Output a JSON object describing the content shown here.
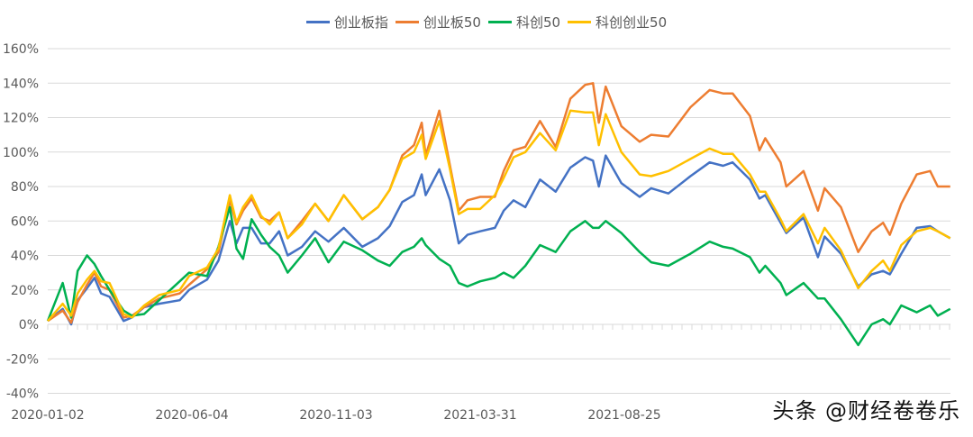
{
  "chart_data": {
    "type": "line",
    "title": "",
    "xlabel": "",
    "ylabel": "",
    "ylim": [
      -40,
      160
    ],
    "y_ticks": [
      -40,
      -20,
      0,
      20,
      40,
      60,
      80,
      100,
      120,
      140,
      160
    ],
    "y_tick_labels": [
      "-40%",
      "-20%",
      "0%",
      "20%",
      "40%",
      "60%",
      "80%",
      "100%",
      "120%",
      "140%",
      "160%"
    ],
    "x_tick_labels": [
      "2020-01-02",
      "2020-06-04",
      "2020-11-03",
      "2021-03-31",
      "2021-08-25"
    ],
    "grid": true,
    "legend_position": "top",
    "x": [
      "2020-01-02",
      "2020-01-18",
      "2020-01-27",
      "2020-02-03",
      "2020-02-13",
      "2020-02-21",
      "2020-02-28",
      "2020-03-08",
      "2020-03-23",
      "2020-04-01",
      "2020-04-14",
      "2020-04-30",
      "2020-05-22",
      "2020-06-01",
      "2020-06-20",
      "2020-07-02",
      "2020-07-14",
      "2020-07-21",
      "2020-07-28",
      "2020-08-06",
      "2020-08-16",
      "2020-08-25",
      "2020-09-04",
      "2020-09-13",
      "2020-09-28",
      "2020-10-12",
      "2020-10-26",
      "2020-11-11",
      "2020-11-30",
      "2020-12-16",
      "2020-12-28",
      "2021-01-10",
      "2021-01-22",
      "2021-01-30",
      "2021-02-03",
      "2021-02-17",
      "2021-02-28",
      "2021-03-09",
      "2021-03-18",
      "2021-03-31",
      "2021-04-15",
      "2021-04-24",
      "2021-05-04",
      "2021-05-16",
      "2021-05-31",
      "2021-06-16",
      "2021-07-01",
      "2021-07-16",
      "2021-07-24",
      "2021-07-30",
      "2021-08-06",
      "2021-08-22",
      "2021-09-10",
      "2021-09-22",
      "2021-10-10",
      "2021-11-02",
      "2021-11-22",
      "2021-12-06",
      "2021-12-16",
      "2022-01-03",
      "2022-01-13",
      "2022-01-19",
      "2022-02-04",
      "2022-02-10",
      "2022-02-28",
      "2022-03-15",
      "2022-03-22",
      "2022-04-08",
      "2022-04-26",
      "2022-05-10",
      "2022-05-22",
      "2022-05-29",
      "2022-06-10",
      "2022-06-26",
      "2022-07-10",
      "2022-07-18",
      "2022-07-31"
    ],
    "series": [
      {
        "name": "创业板指",
        "color": "#4472C4",
        "values": [
          2,
          9,
          0,
          14,
          21,
          27,
          18,
          16,
          2,
          4,
          10,
          12,
          14,
          20,
          26,
          37,
          60,
          47,
          56,
          56,
          47,
          47,
          54,
          40,
          45,
          54,
          48,
          56,
          45,
          50,
          57,
          71,
          75,
          87,
          75,
          90,
          72,
          47,
          52,
          54,
          56,
          66,
          72,
          68,
          84,
          77,
          91,
          97,
          95,
          80,
          98,
          82,
          74,
          79,
          76,
          86,
          94,
          92,
          94,
          84,
          73,
          75,
          59,
          53,
          62,
          39,
          51,
          41,
          22,
          29,
          31,
          29,
          41,
          56,
          57,
          54,
          50
        ]
      },
      {
        "name": "创业板50",
        "color": "#ED7D31",
        "values": [
          2,
          8,
          1,
          13,
          23,
          30,
          22,
          20,
          4,
          5,
          10,
          15,
          18,
          23,
          32,
          42,
          72,
          58,
          66,
          73,
          62,
          60,
          65,
          50,
          60,
          70,
          60,
          75,
          61,
          68,
          78,
          98,
          104,
          117,
          98,
          124,
          92,
          66,
          72,
          74,
          74,
          89,
          101,
          103,
          118,
          103,
          131,
          139,
          140,
          117,
          138,
          115,
          106,
          110,
          109,
          126,
          136,
          134,
          134,
          121,
          101,
          108,
          94,
          80,
          89,
          66,
          79,
          68,
          42,
          54,
          59,
          52,
          70,
          87,
          89,
          80,
          80
        ]
      },
      {
        "name": "科创50",
        "color": "#00B050",
        "values": [
          2,
          24,
          4,
          31,
          40,
          35,
          28,
          20,
          8,
          5,
          6,
          14,
          25,
          30,
          28,
          45,
          68,
          44,
          38,
          61,
          52,
          45,
          40,
          30,
          40,
          50,
          36,
          48,
          43,
          37,
          34,
          42,
          45,
          50,
          46,
          38,
          34,
          24,
          22,
          25,
          27,
          30,
          27,
          34,
          46,
          42,
          54,
          60,
          56,
          56,
          60,
          53,
          42,
          36,
          34,
          41,
          48,
          45,
          44,
          39,
          30,
          34,
          24,
          17,
          24,
          15,
          15,
          3,
          -12,
          0,
          3,
          0,
          11,
          7,
          11,
          5,
          9
        ]
      },
      {
        "name": "科创创业50",
        "color": "#FFC000",
        "values": [
          2,
          12,
          5,
          18,
          26,
          31,
          25,
          24,
          6,
          4,
          11,
          17,
          20,
          28,
          33,
          44,
          75,
          59,
          68,
          75,
          63,
          58,
          65,
          50,
          58,
          70,
          60,
          75,
          61,
          68,
          78,
          96,
          100,
          110,
          96,
          118,
          90,
          64,
          67,
          67,
          75,
          85,
          97,
          100,
          111,
          101,
          124,
          123,
          123,
          104,
          122,
          100,
          87,
          86,
          89,
          96,
          102,
          99,
          99,
          87,
          77,
          77,
          61,
          54,
          64,
          47,
          56,
          43,
          21,
          31,
          37,
          31,
          46,
          54,
          56,
          54,
          50
        ]
      }
    ]
  },
  "watermark": "头条 @财经卷卷乐"
}
